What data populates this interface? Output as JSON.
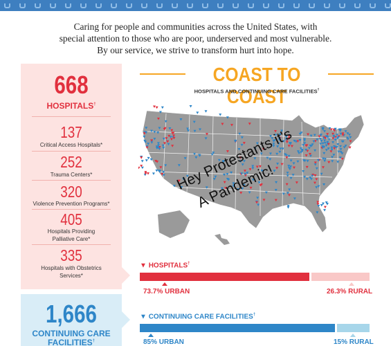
{
  "intro": {
    "line1": "Caring for people and communities across the United States, with",
    "line2": "special attention to those who are poor, underserved and most vulnerable.",
    "line3": "By our service, we strive to transform hurt into hope."
  },
  "hospitals": {
    "total": "668",
    "total_label": "HOSPITALS",
    "stats": [
      {
        "value": "137",
        "label": "Critical Access Hospitals*"
      },
      {
        "value": "252",
        "label": "Trauma Centers*"
      },
      {
        "value": "320",
        "label": "Violence Prevention Programs*"
      },
      {
        "value": "405",
        "label": "Hospitals Providing Palliative Care*"
      },
      {
        "value": "335",
        "label": "Hospitals with Obstetrics Services*"
      }
    ]
  },
  "continuing_care": {
    "total": "1,666",
    "label_line1": "CONTINUING CARE",
    "label_line2": "FACILITIES"
  },
  "map": {
    "title": "COAST TO COAST",
    "subtitle": "HOSPITALS AND CONTINUING CARE FACILITIES"
  },
  "bars": {
    "hospitals": {
      "label": "HOSPITALS",
      "urban_label": "73.7% URBAN",
      "rural_label": "26.3% RURAL",
      "urban_fraction": 0.737,
      "color": "#e1303e",
      "light": "#f9c8c7"
    },
    "continuing": {
      "label": "CONTINUING CARE FACILITIES",
      "urban_label": "85% URBAN",
      "rural_label": "15% RURAL",
      "urban_fraction": 0.85,
      "color": "#2e86c8",
      "light": "#a7d6ea"
    }
  },
  "graffiti": {
    "line1": "Hey Protestants it's",
    "line2": "A Pandemic!"
  },
  "colors": {
    "accent_red": "#e1303e",
    "accent_orange": "#f6a623",
    "accent_blue": "#2e86c8"
  }
}
